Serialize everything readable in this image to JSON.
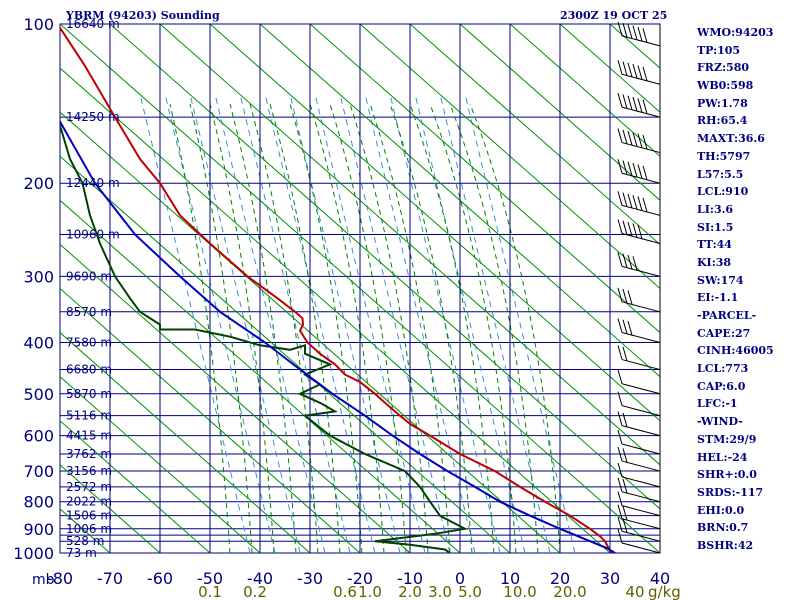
{
  "chart_data": {
    "type": "line",
    "title": "YBRM (94203) Sounding",
    "valid_time": "2300Z 19 OCT 25",
    "pressure_axis": {
      "unit_label": "mb",
      "range": [
        100,
        1000
      ],
      "ticks": [
        100,
        200,
        300,
        400,
        500,
        600,
        700,
        800,
        900,
        1000
      ],
      "grid_levels": [
        100,
        150,
        200,
        250,
        300,
        350,
        400,
        450,
        500,
        550,
        600,
        650,
        700,
        750,
        800,
        850,
        900,
        925,
        950,
        1000
      ]
    },
    "temperature_axis": {
      "range": [
        -80,
        40
      ],
      "ticks": [
        -80,
        -70,
        -60,
        -50,
        -40,
        -30,
        -20,
        -10,
        0,
        10,
        20,
        30,
        40
      ]
    },
    "height_labels": [
      {
        "p": 100,
        "text": "16640 m"
      },
      {
        "p": 150,
        "text": "14250 m"
      },
      {
        "p": 200,
        "text": "12440 m"
      },
      {
        "p": 250,
        "text": "10960 m"
      },
      {
        "p": 300,
        "text": "9690 m"
      },
      {
        "p": 350,
        "text": "8570 m"
      },
      {
        "p": 400,
        "text": "7580 m"
      },
      {
        "p": 450,
        "text": "6680 m"
      },
      {
        "p": 500,
        "text": "5870 m"
      },
      {
        "p": 550,
        "text": "5116 m"
      },
      {
        "p": 600,
        "text": "4415 m"
      },
      {
        "p": 650,
        "text": "3762 m"
      },
      {
        "p": 700,
        "text": "3156 m"
      },
      {
        "p": 750,
        "text": "2572 m"
      },
      {
        "p": 800,
        "text": "2022 m"
      },
      {
        "p": 850,
        "text": "1506 m"
      },
      {
        "p": 900,
        "text": "1006 m"
      },
      {
        "p": 950,
        "text": "528 m"
      },
      {
        "p": 1000,
        "text": "73 m"
      }
    ],
    "mixing_ratio_labels": [
      {
        "t": -50,
        "text": "0.1"
      },
      {
        "t": -41,
        "text": "0.2"
      },
      {
        "t": -23,
        "text": "0.6"
      },
      {
        "t": -18,
        "text": "1.0"
      },
      {
        "t": -10,
        "text": "2.0"
      },
      {
        "t": -4,
        "text": "3.0"
      },
      {
        "t": 2,
        "text": "5.0"
      },
      {
        "t": 12,
        "text": "10.0"
      },
      {
        "t": 22,
        "text": "20.0"
      },
      {
        "t": 35,
        "text": "40"
      }
    ],
    "mixing_ratio_unit": "g/kg",
    "series": [
      {
        "name": "Temperature",
        "color": "#c00000",
        "points": [
          [
            100,
            -80.5
          ],
          [
            120,
            -75
          ],
          [
            150,
            -69
          ],
          [
            180,
            -64
          ],
          [
            200,
            -60
          ],
          [
            230,
            -56
          ],
          [
            260,
            -50
          ],
          [
            300,
            -42.5
          ],
          [
            330,
            -36.5
          ],
          [
            350,
            -33
          ],
          [
            360,
            -31.5
          ],
          [
            370,
            -31.4
          ],
          [
            380,
            -32
          ],
          [
            400,
            -30.5
          ],
          [
            420,
            -28
          ],
          [
            440,
            -25
          ],
          [
            460,
            -23
          ],
          [
            475,
            -20
          ],
          [
            500,
            -17
          ],
          [
            520,
            -15
          ],
          [
            550,
            -12
          ],
          [
            570,
            -10
          ],
          [
            600,
            -6
          ],
          [
            650,
            0
          ],
          [
            700,
            7
          ],
          [
            750,
            12
          ],
          [
            800,
            17
          ],
          [
            850,
            22
          ],
          [
            900,
            26
          ],
          [
            930,
            28
          ],
          [
            950,
            29
          ],
          [
            970,
            29.5
          ],
          [
            990,
            30
          ],
          [
            1000,
            31
          ]
        ]
      },
      {
        "name": "Dewpoint",
        "color": "#004000",
        "points": [
          [
            150,
            -80.5
          ],
          [
            180,
            -78
          ],
          [
            200,
            -75.5
          ],
          [
            230,
            -74
          ],
          [
            260,
            -72
          ],
          [
            300,
            -69
          ],
          [
            330,
            -66
          ],
          [
            350,
            -64
          ],
          [
            370,
            -60
          ],
          [
            378,
            -60
          ],
          [
            378,
            -53
          ],
          [
            390,
            -46
          ],
          [
            405,
            -40
          ],
          [
            413,
            -34
          ],
          [
            405,
            -31
          ],
          [
            420,
            -31
          ],
          [
            440,
            -26
          ],
          [
            460,
            -31
          ],
          [
            480,
            -28
          ],
          [
            500,
            -32
          ],
          [
            520,
            -28
          ],
          [
            540,
            -25
          ],
          [
            550,
            -31
          ],
          [
            600,
            -26
          ],
          [
            650,
            -19
          ],
          [
            700,
            -11
          ],
          [
            750,
            -8
          ],
          [
            800,
            -6
          ],
          [
            850,
            -4
          ],
          [
            880,
            -1
          ],
          [
            900,
            1
          ],
          [
            920,
            -5
          ],
          [
            950,
            -17
          ],
          [
            965,
            -10
          ],
          [
            985,
            -3
          ],
          [
            1000,
            -2
          ]
        ]
      },
      {
        "name": "Parcel",
        "color": "#0000c0",
        "points": [
          [
            150,
            -80.5
          ],
          [
            200,
            -73
          ],
          [
            250,
            -65
          ],
          [
            300,
            -56
          ],
          [
            350,
            -48
          ],
          [
            400,
            -39
          ],
          [
            450,
            -32
          ],
          [
            500,
            -25.5
          ],
          [
            550,
            -19
          ],
          [
            600,
            -13.5
          ],
          [
            650,
            -8
          ],
          [
            700,
            -2.5
          ],
          [
            750,
            3
          ],
          [
            800,
            8
          ],
          [
            850,
            14
          ],
          [
            900,
            20
          ],
          [
            950,
            26
          ],
          [
            980,
            29.5
          ],
          [
            1000,
            31
          ]
        ]
      }
    ],
    "wind_barbs": [
      {
        "p": 110,
        "speed_kt": 90
      },
      {
        "p": 130,
        "speed_kt": 80
      },
      {
        "p": 150,
        "speed_kt": 80
      },
      {
        "p": 175,
        "speed_kt": 65
      },
      {
        "p": 200,
        "speed_kt": 55
      },
      {
        "p": 230,
        "speed_kt": 55
      },
      {
        "p": 260,
        "speed_kt": 45
      },
      {
        "p": 300,
        "speed_kt": 40
      },
      {
        "p": 350,
        "speed_kt": 30
      },
      {
        "p": 400,
        "speed_kt": 25
      },
      {
        "p": 450,
        "speed_kt": 20
      },
      {
        "p": 500,
        "speed_kt": 10
      },
      {
        "p": 550,
        "speed_kt": 10
      },
      {
        "p": 600,
        "speed_kt": 15
      },
      {
        "p": 650,
        "speed_kt": 5
      },
      {
        "p": 700,
        "speed_kt": 20
      },
      {
        "p": 750,
        "speed_kt": 10
      },
      {
        "p": 800,
        "speed_kt": 15
      },
      {
        "p": 850,
        "speed_kt": 10
      },
      {
        "p": 900,
        "speed_kt": 20
      },
      {
        "p": 950,
        "speed_kt": 15
      },
      {
        "p": 1000,
        "speed_kt": 10
      }
    ]
  },
  "indices": [
    "WMO:94203",
    "TP:105",
    "FRZ:580",
    "WB0:598",
    "PW:1.78",
    "RH:65.4",
    "MAXT:36.6",
    "TH:5797",
    "L57:5.5",
    "LCL:910",
    "LI:3.6",
    "SI:1.5",
    "TT:44",
    "KI:38",
    "SW:174",
    "EI:-1.1",
    "-PARCEL-",
    "CAPE:27",
    "CINH:46005",
    "LCL:773",
    "CAP:6.0",
    "LFC:-1",
    "-WIND-",
    "STM:29/9",
    "HEL:-24",
    "SHR+:0.0",
    "SRDS:-117",
    "EHI:0.0",
    "BRN:0.7",
    "BSHR:42"
  ],
  "colors": {
    "frame": "#000080",
    "dry_adiabat": "#009000",
    "moist_adiabat": "#008000",
    "mixing_ratio": "#3a8fd8",
    "mixing_label": "#606000",
    "axis_text": "#000080"
  }
}
